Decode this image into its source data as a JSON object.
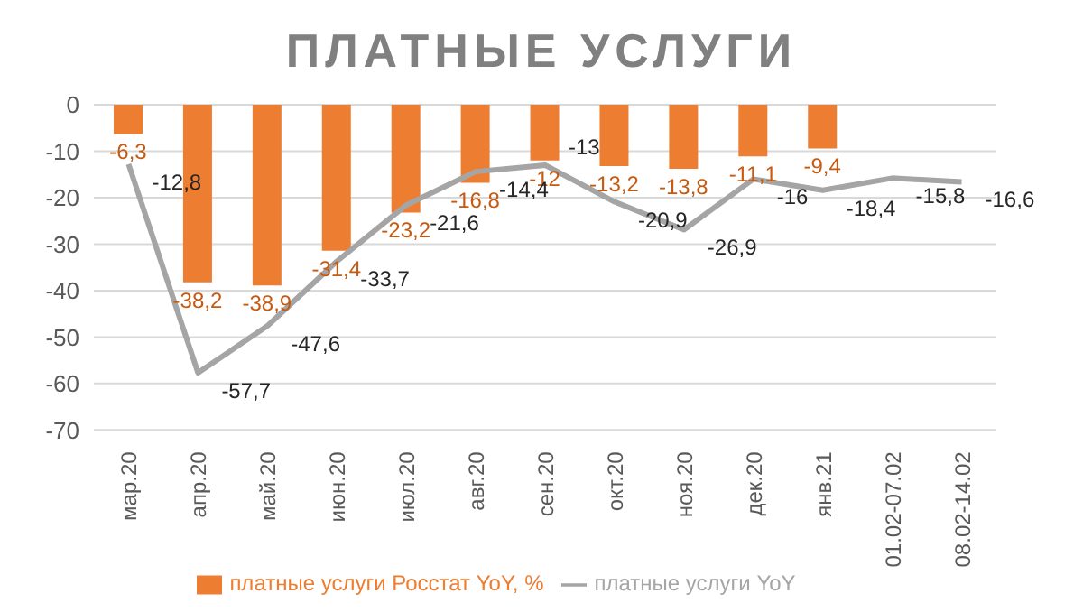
{
  "chart_data": {
    "type": "bar",
    "title": "ПЛАТНЫЕ УСЛУГИ",
    "categories": [
      "мар.20",
      "апр.20",
      "май.20",
      "июн.20",
      "июл.20",
      "авг.20",
      "сен.20",
      "окт.20",
      "ноя.20",
      "дек.20",
      "янв.21",
      "01.02-07.02",
      "08.02-14.02"
    ],
    "series": [
      {
        "name": "платные услуги Росстат YoY, %",
        "color": "#ed7d31",
        "values": [
          -6.3,
          -38.2,
          -38.9,
          -31.4,
          -23.2,
          -16.8,
          -12,
          -13.2,
          -13.8,
          -11.1,
          -9.4,
          null,
          null
        ],
        "value_labels": [
          "-6,3",
          "-38,2",
          "-38,9",
          "-31,4",
          "-23,2",
          "-16,8",
          "-12",
          "-13,2",
          "-13,8",
          "-11,1",
          "-9,4",
          null,
          null
        ]
      },
      {
        "name": "платные услуги YoY",
        "type": "line",
        "color": "#a5a5a5",
        "values": [
          -12.8,
          -57.7,
          -47.6,
          -33.7,
          -21.6,
          -14.4,
          -13,
          -20.9,
          -26.9,
          -16,
          -18.4,
          -15.8,
          -16.6
        ],
        "value_labels": [
          "-12,8",
          "-57,7",
          "-47,6",
          "-33,7",
          "-21,6",
          "-14,4",
          "-13",
          "-20,9",
          "-26,9",
          "-16",
          "-18,4",
          "-15,8",
          "-16,6"
        ]
      }
    ],
    "ylim": [
      -70,
      0
    ],
    "yticks": [
      0,
      -10,
      -20,
      -30,
      -40,
      -50,
      -60,
      -70
    ],
    "grid": "y",
    "legend": "bottom",
    "marker": "none"
  }
}
